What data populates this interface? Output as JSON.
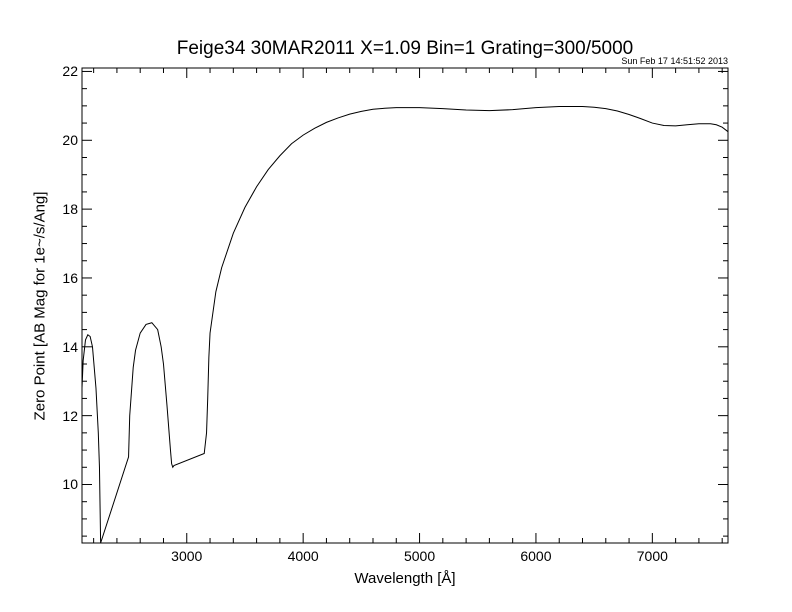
{
  "chart_data": {
    "type": "line",
    "title": "Feige34 30MAR2011 X=1.09 Bin=1 Grating=300/5000",
    "timestamp": "Sun Feb 17 14:51:52 2013",
    "xlabel": "Wavelength [Å]",
    "ylabel": "Zero Point [AB Mag for 1e~/s/Ang]",
    "xlim": [
      2100,
      7650
    ],
    "ylim": [
      8.3,
      22.1
    ],
    "xticks": [
      3000,
      4000,
      5000,
      6000,
      7000
    ],
    "yticks": [
      10,
      12,
      14,
      16,
      18,
      20,
      22
    ],
    "grid": false,
    "legend": "none",
    "series": [
      {
        "color": "#000000",
        "x": [
          2100,
          2110,
          2130,
          2150,
          2170,
          2190,
          2200,
          2220,
          2240,
          2250,
          2260,
          2500,
          2510,
          2540,
          2560,
          2600,
          2650,
          2700,
          2750,
          2780,
          2800,
          2830,
          2860,
          2870,
          2880,
          2890,
          3150,
          3170,
          3180,
          3190,
          3200,
          3250,
          3300,
          3400,
          3500,
          3600,
          3700,
          3800,
          3900,
          4000,
          4100,
          4200,
          4300,
          4400,
          4500,
          4600,
          4700,
          4800,
          5000,
          5200,
          5400,
          5600,
          5800,
          6000,
          6200,
          6400,
          6500,
          6600,
          6700,
          6800,
          6900,
          7000,
          7100,
          7200,
          7300,
          7400,
          7500,
          7550,
          7600,
          7650
        ],
        "y": [
          12.8,
          13.6,
          14.2,
          14.35,
          14.3,
          14.0,
          13.6,
          12.8,
          11.5,
          10.5,
          8.3,
          10.8,
          12.0,
          13.4,
          13.9,
          14.4,
          14.65,
          14.7,
          14.5,
          14.0,
          13.5,
          12.3,
          11.0,
          10.6,
          10.5,
          10.55,
          10.9,
          11.5,
          12.5,
          13.7,
          14.4,
          15.6,
          16.3,
          17.3,
          18.05,
          18.65,
          19.15,
          19.55,
          19.9,
          20.15,
          20.35,
          20.52,
          20.65,
          20.76,
          20.84,
          20.9,
          20.93,
          20.95,
          20.95,
          20.92,
          20.88,
          20.86,
          20.89,
          20.95,
          20.98,
          20.98,
          20.96,
          20.92,
          20.85,
          20.75,
          20.63,
          20.5,
          20.43,
          20.42,
          20.45,
          20.48,
          20.48,
          20.45,
          20.38,
          20.25
        ]
      }
    ]
  }
}
